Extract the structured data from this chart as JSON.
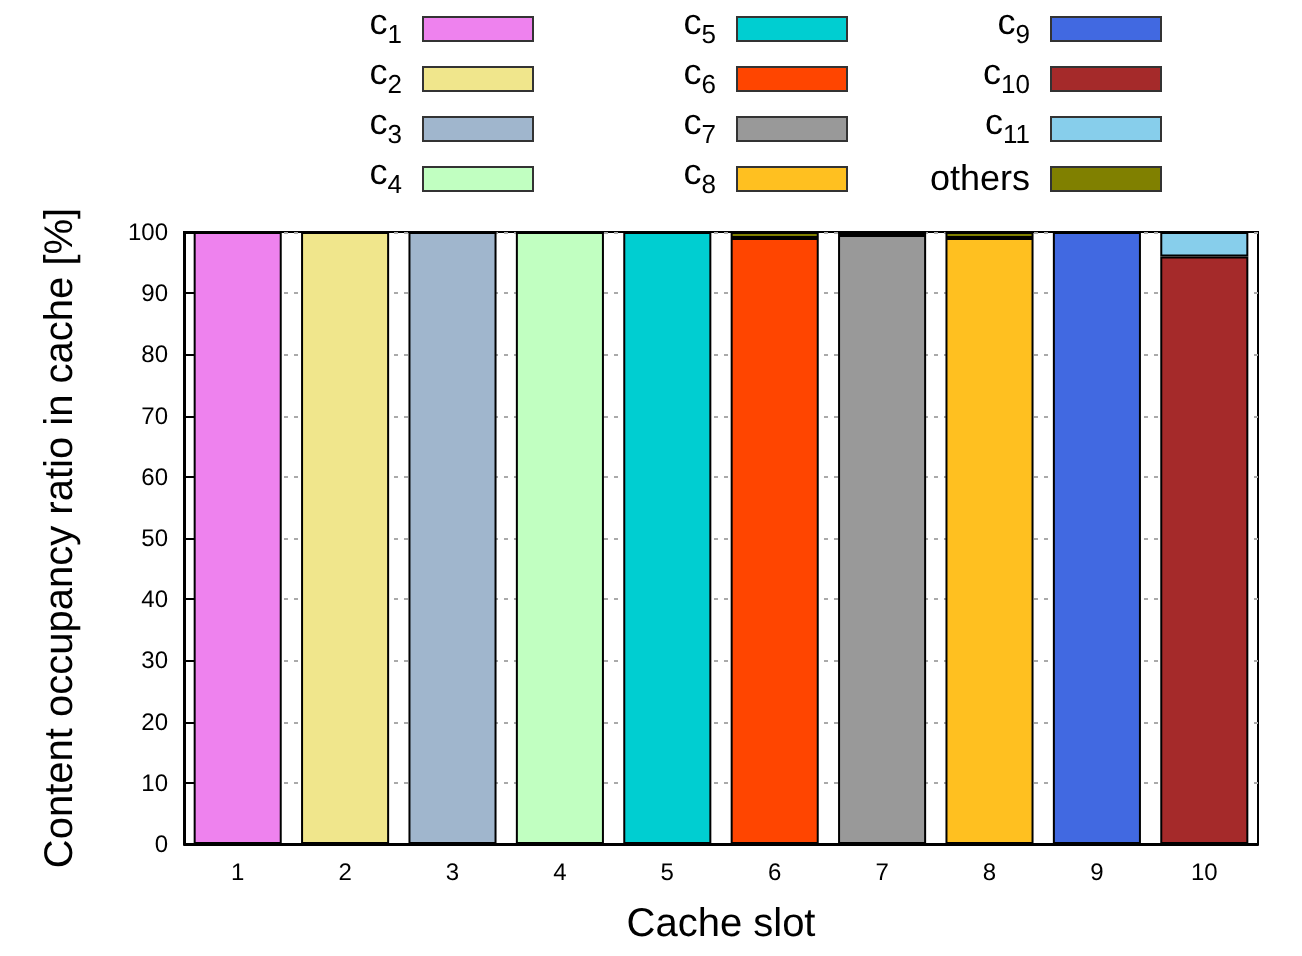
{
  "chart_data": {
    "type": "bar",
    "stacked": true,
    "xlabel": "Cache slot",
    "ylabel": "Content occupancy ratio in cache [%]",
    "categories": [
      "1",
      "2",
      "3",
      "4",
      "5",
      "6",
      "7",
      "8",
      "9",
      "10"
    ],
    "series": [
      {
        "name": "c$_{1}$",
        "color": "#ee82ee",
        "values": [
          100,
          null,
          null,
          null,
          null,
          null,
          null,
          null,
          null,
          null
        ]
      },
      {
        "name": "c$_{2}$",
        "color": "#f0e68c",
        "values": [
          null,
          100,
          null,
          null,
          null,
          null,
          null,
          null,
          null,
          null
        ]
      },
      {
        "name": "c$_{3}$",
        "color": "#a0b6cd",
        "values": [
          null,
          null,
          100,
          null,
          null,
          null,
          null,
          null,
          null,
          null
        ]
      },
      {
        "name": "c$_{4}$",
        "color": "#c1ffc1",
        "values": [
          null,
          null,
          null,
          100,
          null,
          null,
          null,
          null,
          null,
          null
        ]
      },
      {
        "name": "c$_{5}$",
        "color": "#00ced1",
        "values": [
          null,
          null,
          null,
          null,
          100,
          null,
          null,
          null,
          null,
          null
        ]
      },
      {
        "name": "c$_{6}$",
        "color": "#ff4500",
        "values": [
          null,
          null,
          null,
          null,
          null,
          99,
          null,
          null,
          null,
          null
        ]
      },
      {
        "name": "c$_{7}$",
        "color": "#999999",
        "values": [
          null,
          null,
          null,
          null,
          null,
          null,
          99.5,
          null,
          null,
          null
        ]
      },
      {
        "name": "c$_{8}$",
        "color": "#ffc020",
        "values": [
          null,
          null,
          null,
          null,
          null,
          null,
          null,
          99,
          null,
          null
        ]
      },
      {
        "name": "c$_{9}$",
        "color": "#4169e1",
        "values": [
          null,
          null,
          null,
          null,
          null,
          null,
          null,
          null,
          100,
          null
        ]
      },
      {
        "name": "c$_{10}$",
        "color": "#a52a2a",
        "values": [
          null,
          null,
          null,
          null,
          null,
          null,
          null,
          null,
          null,
          96
        ]
      },
      {
        "name": "c$_{11}$",
        "color": "#87ceeb",
        "values": [
          null,
          null,
          null,
          null,
          null,
          null,
          null,
          null,
          null,
          4
        ]
      },
      {
        "name": "others",
        "color": "#808000",
        "values": [
          null,
          null,
          null,
          null,
          null,
          1,
          0.5,
          1,
          null,
          null
        ]
      }
    ],
    "ylim": [
      0,
      100
    ],
    "yticks": [
      0,
      10,
      20,
      30,
      40,
      50,
      60,
      70,
      80,
      90,
      100
    ],
    "grid": "y",
    "legend": "top"
  }
}
